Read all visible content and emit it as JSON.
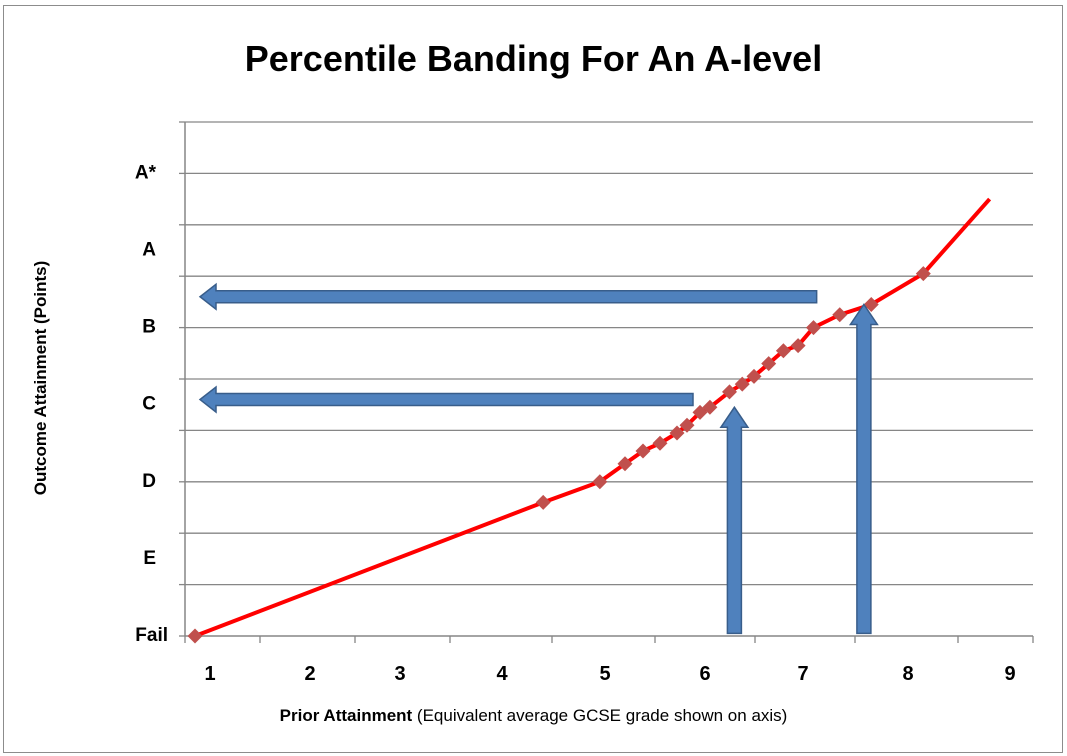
{
  "chart_data": {
    "type": "line",
    "title": "Percentile Banding For An A-level",
    "xlabel_bold": "Prior Attainment",
    "xlabel_rest": " (Equivalent average GCSE grade shown on axis)",
    "ylabel": "Outcome Attainment (Points)",
    "x_ticks": [
      "1",
      "2",
      "3",
      "4",
      "5",
      "6",
      "7",
      "8",
      "9"
    ],
    "y_ticks": [
      "Fail",
      "E",
      "D",
      "C",
      "B",
      "A",
      "A*"
    ],
    "xlim": [
      0.8,
      9.2
    ],
    "ylim": [
      0,
      10
    ],
    "grid": "horizontal",
    "line_color": "#ff0000",
    "marker_color": "#c0504d",
    "arrow_color": "#4f81bd",
    "series": [
      {
        "x": [
          0.85,
          4.4,
          4.95,
          5.2,
          5.38,
          5.55,
          5.72,
          5.82,
          5.95,
          6.05,
          6.25,
          6.38,
          6.5,
          6.65,
          6.8,
          6.95,
          7.1,
          7.35,
          7.65,
          8.15,
          8.8
        ],
        "y": [
          0,
          2.6,
          3.0,
          3.35,
          3.6,
          3.75,
          3.95,
          4.1,
          4.35,
          4.45,
          4.75,
          4.9,
          5.05,
          5.3,
          5.55,
          5.65,
          6.0,
          6.25,
          6.45,
          7.05,
          8.5
        ],
        "markers": [
          true,
          true,
          true,
          true,
          true,
          true,
          true,
          true,
          true,
          true,
          true,
          true,
          true,
          true,
          true,
          true,
          true,
          true,
          true,
          true,
          false
        ]
      }
    ],
    "arrows": [
      {
        "direction": "up",
        "x": 6.3,
        "y_from": 0.05,
        "y_to": 4.45
      },
      {
        "direction": "left",
        "y": 4.6,
        "x_from": 5.88,
        "x_to": 0.9
      },
      {
        "direction": "up",
        "x": 7.58,
        "y_from": 0.05,
        "y_to": 6.45
      },
      {
        "direction": "left",
        "y": 6.6,
        "x_from": 7.13,
        "x_to": 0.9
      }
    ]
  }
}
